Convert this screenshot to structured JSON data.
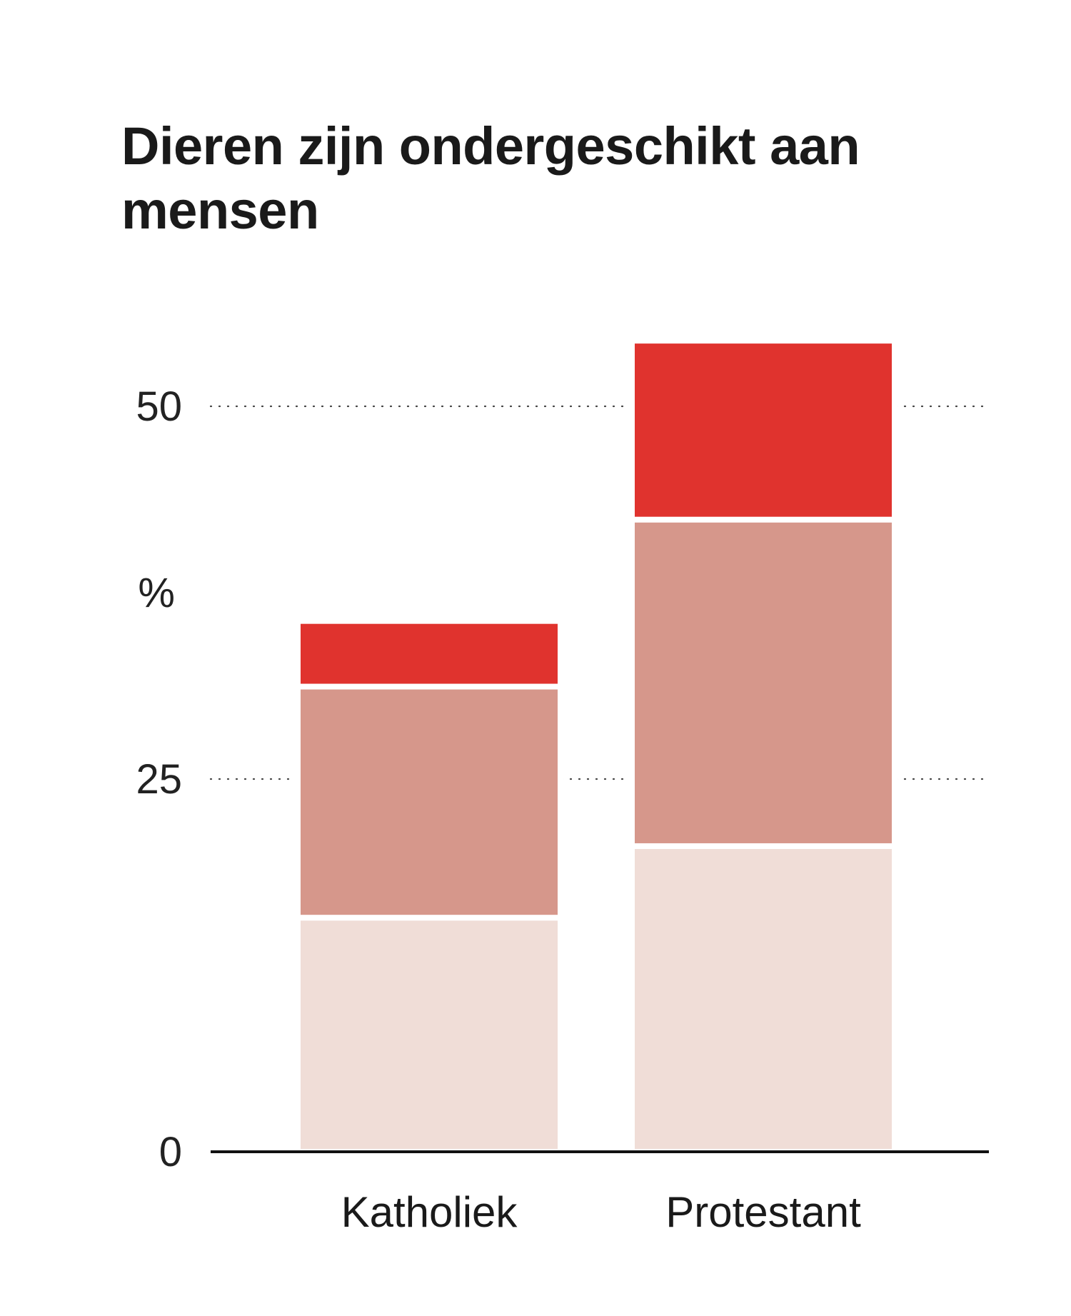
{
  "chart_data": {
    "type": "bar",
    "stacked": true,
    "title": "Dieren zijn ondergeschikt aan mensen",
    "ylabel": "%",
    "categories": [
      "Katholiek",
      "Protestant"
    ],
    "series": [
      {
        "values": [
          15.7,
          20.5
        ],
        "color": "#f0ddd7"
      },
      {
        "values": [
          15.5,
          21.9
        ],
        "color": "#d6978b"
      },
      {
        "values": [
          4.4,
          12.0
        ],
        "color": "#e0332e"
      }
    ],
    "ylim": [
      0,
      55
    ],
    "yticks": [
      0,
      25,
      50
    ],
    "grid": "dotted"
  }
}
